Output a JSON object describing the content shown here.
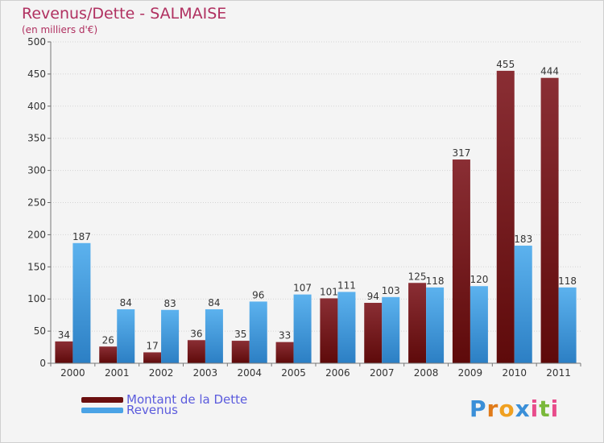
{
  "header": {
    "title": "Revenus/Dette - SALMAISE",
    "subtitle": "(en milliers d'€)"
  },
  "chart_data": {
    "type": "bar",
    "categories": [
      "2000",
      "2001",
      "2002",
      "2003",
      "2004",
      "2005",
      "2006",
      "2007",
      "2008",
      "2009",
      "2010",
      "2011"
    ],
    "series": [
      {
        "name": "Montant de la Dette",
        "color": "#7a1c1c",
        "values": [
          34,
          26,
          17,
          36,
          35,
          33,
          101,
          94,
          125,
          317,
          455,
          444
        ]
      },
      {
        "name": "Revenus",
        "color": "#4aa3e6",
        "values": [
          187,
          84,
          83,
          84,
          96,
          107,
          111,
          103,
          118,
          120,
          183,
          118
        ]
      }
    ],
    "ylim": [
      0,
      500
    ],
    "yticks": [
      0,
      50,
      100,
      150,
      200,
      250,
      300,
      350,
      400,
      450,
      500
    ],
    "grid": true,
    "legend_position": "bottom-left"
  },
  "legend": {
    "items": [
      {
        "label": "Montant de la Dette",
        "color": "#6b0f0f"
      },
      {
        "label": "Revenus",
        "color": "#4aa3e6"
      }
    ]
  },
  "logo": {
    "letters": [
      "P",
      "r",
      "o",
      "x",
      "i",
      "t",
      "i"
    ],
    "colors": [
      "#3a8fd8",
      "#e07b1a",
      "#f0a020",
      "#3a8fd8",
      "#e84c8b",
      "#7ab83a",
      "#e84c8b"
    ]
  }
}
